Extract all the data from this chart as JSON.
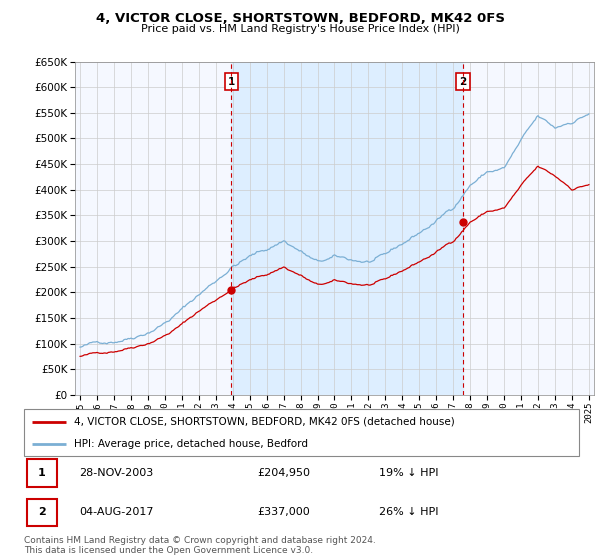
{
  "title": "4, VICTOR CLOSE, SHORTSTOWN, BEDFORD, MK42 0FS",
  "subtitle": "Price paid vs. HM Land Registry's House Price Index (HPI)",
  "legend_line1": "4, VICTOR CLOSE, SHORTSTOWN, BEDFORD, MK42 0FS (detached house)",
  "legend_line2": "HPI: Average price, detached house, Bedford",
  "annotation1_date": "28-NOV-2003",
  "annotation1_price": "£204,950",
  "annotation1_hpi": "19% ↓ HPI",
  "annotation2_date": "04-AUG-2017",
  "annotation2_price": "£337,000",
  "annotation2_hpi": "26% ↓ HPI",
  "footer": "Contains HM Land Registry data © Crown copyright and database right 2024.\nThis data is licensed under the Open Government Licence v3.0.",
  "sale_color": "#cc0000",
  "hpi_color": "#7bafd4",
  "shade_color": "#ddeeff",
  "dashed_line_color": "#cc0000",
  "annotation_box_color": "#cc0000",
  "ylim": [
    0,
    650000
  ],
  "ytick_labels": [
    "£0",
    "£50K",
    "£100K",
    "£150K",
    "£200K",
    "£250K",
    "£300K",
    "£350K",
    "£400K",
    "£450K",
    "£500K",
    "£550K",
    "£600K",
    "£650K"
  ],
  "yticks": [
    0,
    50000,
    100000,
    150000,
    200000,
    250000,
    300000,
    350000,
    400000,
    450000,
    500000,
    550000,
    600000,
    650000
  ],
  "sale1_x": 2003.92,
  "sale1_y": 204950,
  "sale2_x": 2017.59,
  "sale2_y": 337000,
  "xlim_left": 1994.7,
  "xlim_right": 2025.3
}
